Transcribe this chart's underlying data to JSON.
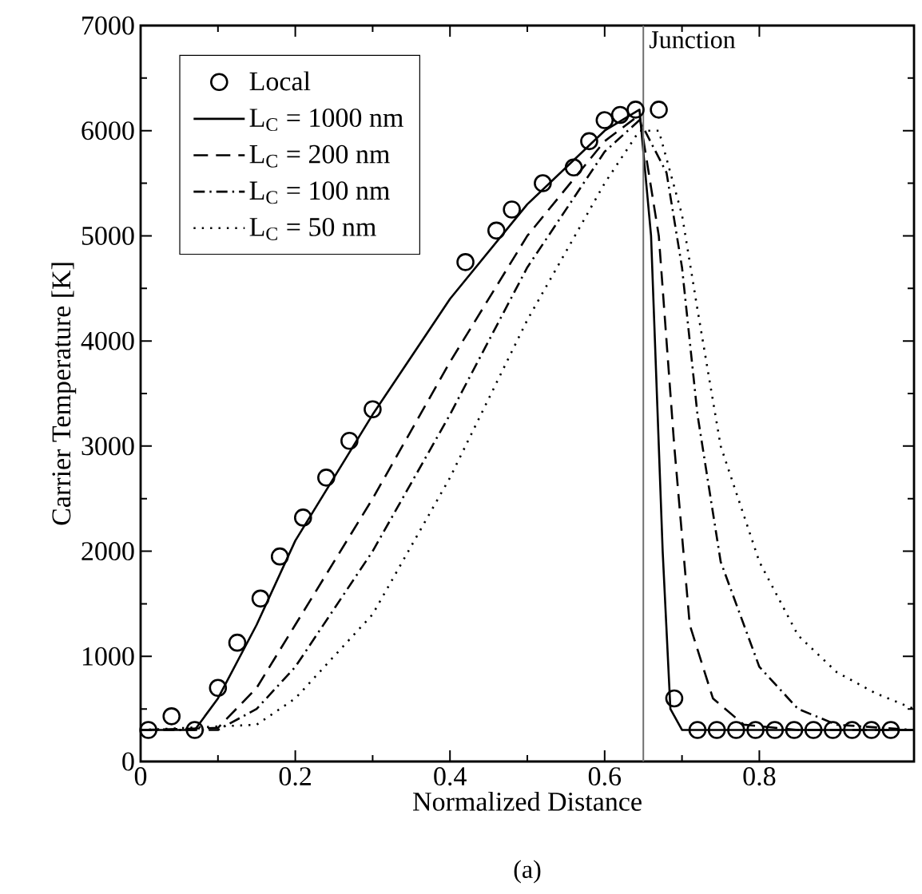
{
  "chart_data": {
    "type": "line",
    "xlabel": "Normalized Distance",
    "ylabel": "Carrier Temperature [K]",
    "xlim": [
      0,
      1
    ],
    "ylim": [
      0,
      7000
    ],
    "xticks": [
      0,
      0.2,
      0.4,
      0.6,
      0.8
    ],
    "yticks": [
      0,
      1000,
      2000,
      3000,
      4000,
      5000,
      6000,
      7000
    ],
    "legend": "top left",
    "grid": false,
    "ref_lines": [
      {
        "axis": "x",
        "value": 0.65,
        "label": "Junction",
        "color": "#707070"
      }
    ],
    "annotations": [
      "(a)"
    ],
    "series": [
      {
        "name": "Local",
        "type": "scatter",
        "marker": "circle",
        "color": "#000000",
        "x": [
          0.01,
          0.04,
          0.07,
          0.1,
          0.125,
          0.155,
          0.18,
          0.21,
          0.24,
          0.27,
          0.3,
          0.42,
          0.46,
          0.48,
          0.52,
          0.56,
          0.58,
          0.6,
          0.62,
          0.64,
          0.67,
          0.69,
          0.72,
          0.745,
          0.77,
          0.795,
          0.82,
          0.845,
          0.87,
          0.895,
          0.92,
          0.945,
          0.97
        ],
        "values": [
          300,
          430,
          300,
          700,
          1130,
          1550,
          1950,
          2320,
          2700,
          3050,
          3350,
          4750,
          5050,
          5250,
          5500,
          5650,
          5900,
          6100,
          6150,
          6200,
          6200,
          600,
          300,
          300,
          300,
          300,
          300,
          300,
          300,
          300,
          300,
          300,
          300
        ]
      },
      {
        "name": "L$_{C}$ = 1000 nm",
        "line_style": "solid",
        "color": "#000000",
        "x": [
          0,
          0.07,
          0.1,
          0.15,
          0.2,
          0.3,
          0.4,
          0.5,
          0.6,
          0.645,
          0.66,
          0.675,
          0.685,
          0.7,
          1.0
        ],
        "values": [
          300,
          300,
          600,
          1300,
          2100,
          3300,
          4400,
          5300,
          6000,
          6200,
          5000,
          2000,
          500,
          300,
          300
        ]
      },
      {
        "name": "L$_{C}$ = 200 nm",
        "line_style": "dashed",
        "color": "#000000",
        "x": [
          0,
          0.1,
          0.15,
          0.2,
          0.3,
          0.4,
          0.5,
          0.6,
          0.645,
          0.67,
          0.69,
          0.71,
          0.74,
          0.78,
          0.85,
          1.0
        ],
        "values": [
          300,
          320,
          700,
          1300,
          2500,
          3800,
          5000,
          5900,
          6150,
          5000,
          3000,
          1300,
          600,
          350,
          300,
          300
        ]
      },
      {
        "name": "L$_{C}$ = 100 nm",
        "line_style": "dashdot",
        "color": "#000000",
        "x": [
          0,
          0.1,
          0.15,
          0.2,
          0.3,
          0.4,
          0.5,
          0.6,
          0.645,
          0.68,
          0.7,
          0.72,
          0.75,
          0.8,
          0.85,
          0.9,
          1.0
        ],
        "values": [
          300,
          300,
          500,
          900,
          2000,
          3300,
          4700,
          5800,
          6100,
          5600,
          4700,
          3300,
          1900,
          900,
          500,
          350,
          300
        ]
      },
      {
        "name": "L$_{C}$ = 50 nm",
        "line_style": "dotted",
        "color": "#000000",
        "x": [
          0,
          0.15,
          0.2,
          0.3,
          0.4,
          0.5,
          0.6,
          0.645,
          0.67,
          0.7,
          0.72,
          0.75,
          0.8,
          0.85,
          0.9,
          0.95,
          1.0
        ],
        "values": [
          300,
          350,
          600,
          1400,
          2700,
          4200,
          5500,
          6000,
          6000,
          5200,
          4300,
          3000,
          1900,
          1200,
          850,
          650,
          500
        ]
      }
    ]
  }
}
